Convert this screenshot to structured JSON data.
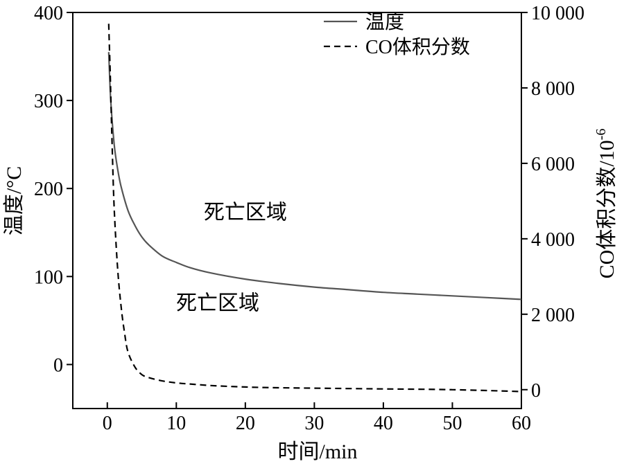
{
  "chart_data": {
    "type": "line",
    "xlabel": "时间/min",
    "ylabel_left": "温度/°C",
    "ylabel_right_main": "CO体积分数/10",
    "ylabel_right_sup": "-6",
    "xlim": [
      -5,
      60
    ],
    "ylim_left": [
      -50,
      400
    ],
    "ylim_right": [
      -500,
      10000
    ],
    "x_ticks": [
      0,
      10,
      20,
      30,
      40,
      50,
      60
    ],
    "x_tick_labels": [
      "0",
      "10",
      "20",
      "30",
      "40",
      "50",
      "60"
    ],
    "y_left_ticks": [
      0,
      100,
      200,
      300,
      400
    ],
    "y_left_tick_labels": [
      "0",
      "100",
      "200",
      "300",
      "400"
    ],
    "y_right_ticks": [
      0,
      2000,
      4000,
      6000,
      8000,
      10000
    ],
    "y_right_tick_labels": [
      "0",
      "2 000",
      "4 000",
      "6 000",
      "8 000",
      "10 000"
    ],
    "grid": false,
    "legend_position": "top-right",
    "series": [
      {
        "name": "温度",
        "axis": "left",
        "style": "solid",
        "color": "#555555",
        "x": [
          0.2,
          0.5,
          1,
          1.5,
          2,
          3,
          4,
          5,
          6,
          8,
          10,
          12,
          15,
          20,
          25,
          30,
          35,
          40,
          45,
          50,
          55,
          60
        ],
        "y": [
          355,
          300,
          250,
          222,
          202,
          175,
          158,
          145,
          136,
          123,
          116,
          110,
          104,
          97,
          92,
          88,
          85,
          82,
          80,
          78,
          76,
          74
        ]
      },
      {
        "name": "CO体积分数",
        "axis": "right",
        "style": "dashed",
        "color": "#000000",
        "x": [
          0.2,
          0.4,
          0.7,
          1,
          1.5,
          2,
          2.5,
          3,
          4,
          5,
          6,
          8,
          10,
          12,
          15,
          20,
          25,
          30,
          40,
          50,
          60
        ],
        "y": [
          9700,
          8500,
          6500,
          4800,
          3200,
          2200,
          1500,
          1000,
          600,
          400,
          320,
          230,
          180,
          150,
          110,
          70,
          50,
          40,
          20,
          0,
          -50
        ]
      }
    ],
    "annotations": [
      {
        "text": "死亡区域",
        "x": 20,
        "y": 165,
        "axis": "left"
      },
      {
        "text": "死亡区域",
        "x": 16,
        "y": 62,
        "axis": "left"
      }
    ]
  }
}
